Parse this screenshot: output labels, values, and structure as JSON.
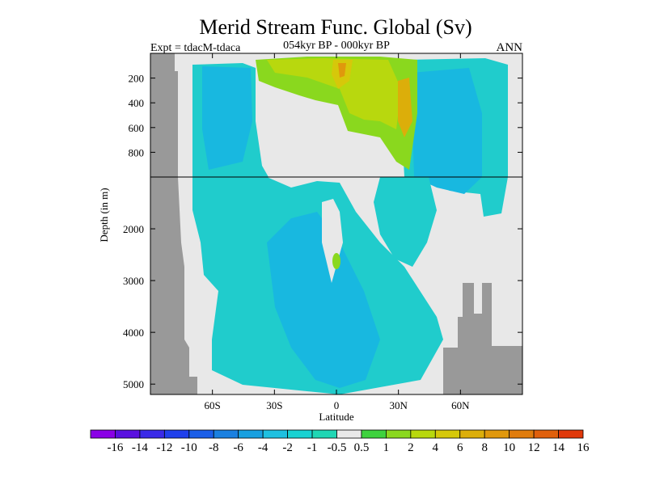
{
  "chart_data": {
    "type": "heatmap",
    "title": "Merid Stream Func. Global (Sv)",
    "subtitle_left": "Expt = tdacM-tdaca",
    "subtitle_center": "054kyr BP - 000kyr BP",
    "subtitle_right": "ANN",
    "xlabel": "Latitude",
    "ylabel": "Depth (in m)",
    "x_ticks": [
      {
        "value": -60,
        "label": "60S"
      },
      {
        "value": -30,
        "label": "30S"
      },
      {
        "value": 0,
        "label": "0"
      },
      {
        "value": 30,
        "label": "30N"
      },
      {
        "value": 60,
        "label": "60N"
      }
    ],
    "xlim": [
      -90,
      90
    ],
    "upper_y_ticks": [
      {
        "value": 200,
        "label": "200"
      },
      {
        "value": 400,
        "label": "400"
      },
      {
        "value": 600,
        "label": "600"
      },
      {
        "value": 800,
        "label": "800"
      }
    ],
    "upper_ylim": [
      0,
      1000
    ],
    "lower_y_ticks": [
      {
        "value": 2000,
        "label": "2000"
      },
      {
        "value": 3000,
        "label": "3000"
      },
      {
        "value": 4000,
        "label": "4000"
      },
      {
        "value": 5000,
        "label": "5000"
      }
    ],
    "lower_ylim": [
      1000,
      5200
    ],
    "colorbar": {
      "labels": [
        "-16",
        "-14",
        "-12",
        "-10",
        "-8",
        "-6",
        "-4",
        "-2",
        "-1",
        "-0.5",
        "0.5",
        "1",
        "2",
        "4",
        "6",
        "8",
        "10",
        "12",
        "14",
        "16"
      ],
      "colors": [
        "#8a00e6",
        "#5a10e0",
        "#3a2ae8",
        "#2040ec",
        "#1a5ee8",
        "#1a80e0",
        "#18a0e0",
        "#1ec0e0",
        "#18d2d2",
        "#20d6b4",
        "#e8e8e8",
        "#3ed23e",
        "#8ad81e",
        "#b8d80e",
        "#d6c80a",
        "#dcae0a",
        "#e0980c",
        "#e07c0c",
        "#e0600c",
        "#e0380a"
      ]
    },
    "colors": {
      "background": "#e8e8e8",
      "land": "#999999",
      "field": "#20cccc",
      "field_blue": "#18b8e0"
    },
    "grid": false
  }
}
